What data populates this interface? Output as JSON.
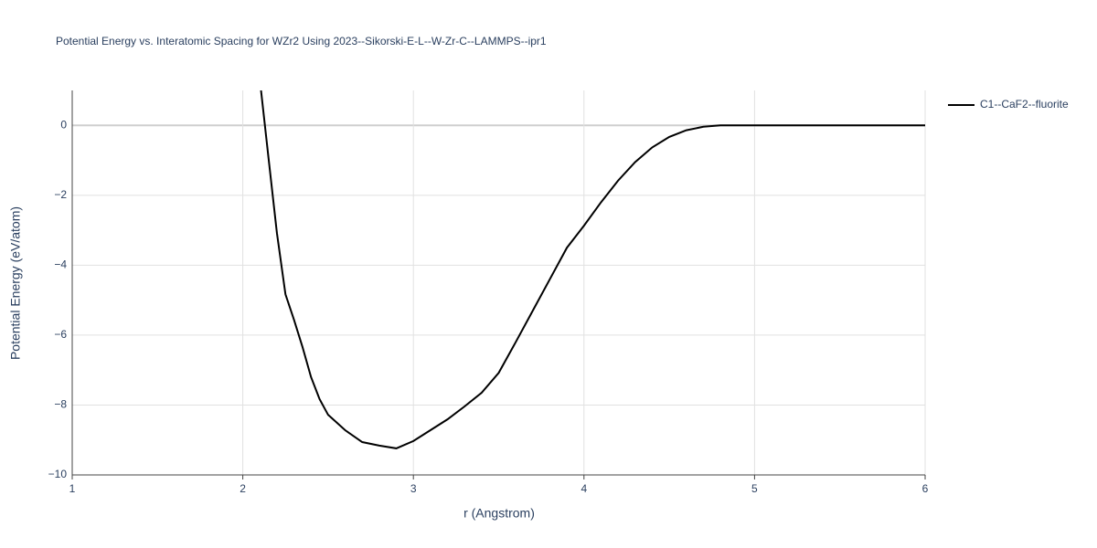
{
  "chart_data": {
    "type": "line",
    "title": "Potential Energy vs. Interatomic Spacing for WZr2 Using 2023--Sikorski-E-L--W-Zr-C--LAMMPS--ipr1",
    "x_label": "r (Angstrom)",
    "y_label": "Potential Energy (eV/atom)",
    "x": [
      2.1,
      2.15,
      2.2,
      2.25,
      2.3,
      2.35,
      2.4,
      2.45,
      2.5,
      2.6,
      2.7,
      2.8,
      2.9,
      3.0,
      3.1,
      3.2,
      3.3,
      3.4,
      3.5,
      3.6,
      3.7,
      3.8,
      3.9,
      4.0,
      4.1,
      4.2,
      4.3,
      4.4,
      4.5,
      4.6,
      4.7,
      4.8,
      4.9,
      5.0,
      5.5,
      6.0
    ],
    "series": [
      {
        "name": "C1--CaF2--fluorite",
        "color": "#000000",
        "values": [
          1.3,
          -0.9,
          -3.08,
          -4.83,
          -5.56,
          -6.34,
          -7.2,
          -7.83,
          -8.28,
          -8.72,
          -9.06,
          -9.16,
          -9.24,
          -9.03,
          -8.72,
          -8.41,
          -8.04,
          -7.65,
          -7.08,
          -6.2,
          -5.3,
          -4.4,
          -3.5,
          -2.87,
          -2.2,
          -1.58,
          -1.05,
          -0.63,
          -0.33,
          -0.14,
          -0.04,
          0,
          0,
          0,
          0,
          0
        ]
      }
    ],
    "xlim": [
      1,
      6
    ],
    "xticks": [
      1,
      2,
      3,
      4,
      5,
      6
    ],
    "ylim": [
      -10,
      1
    ],
    "yticks": [
      {
        "value": -10,
        "label": "−10"
      },
      {
        "value": -8,
        "label": "−8"
      },
      {
        "value": -6,
        "label": "−6"
      },
      {
        "value": -4,
        "label": "−4"
      },
      {
        "value": -2,
        "label": "−2"
      },
      0
    ],
    "grid": true
  }
}
